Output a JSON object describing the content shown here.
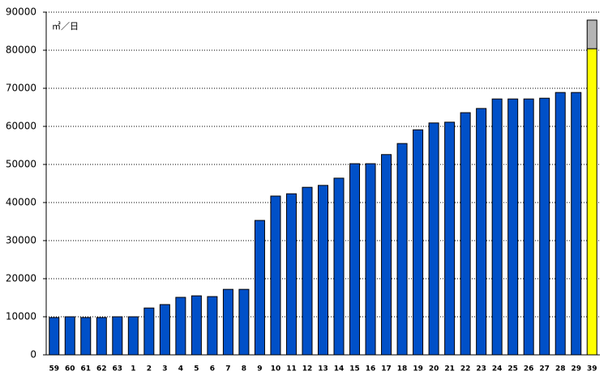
{
  "chart_data": {
    "type": "bar",
    "stacked": true,
    "y_unit_label": "㎥／日",
    "categories": [
      "59",
      "60",
      "61",
      "62",
      "63",
      "1",
      "2",
      "3",
      "4",
      "5",
      "6",
      "7",
      "8",
      "9",
      "10",
      "11",
      "12",
      "13",
      "14",
      "15",
      "16",
      "17",
      "18",
      "19",
      "20",
      "21",
      "22",
      "23",
      "24",
      "25",
      "26",
      "27",
      "28",
      "29",
      "39"
    ],
    "series": [
      {
        "color": "#0050c8",
        "values": [
          9800,
          10000,
          9800,
          9800,
          10000,
          10000,
          12300,
          13200,
          15100,
          15500,
          15300,
          17200,
          17200,
          35300,
          41700,
          42300,
          44000,
          44500,
          46400,
          50200,
          50200,
          52600,
          55500,
          59100,
          60900,
          61100,
          63600,
          64700,
          67200,
          67200,
          67200,
          67400,
          68900,
          68900,
          null
        ]
      },
      {
        "color": "#ffff00",
        "values": [
          null,
          null,
          null,
          null,
          null,
          null,
          null,
          null,
          null,
          null,
          null,
          null,
          null,
          null,
          null,
          null,
          null,
          null,
          null,
          null,
          null,
          null,
          null,
          null,
          null,
          null,
          null,
          null,
          null,
          null,
          null,
          null,
          null,
          null,
          80400
        ]
      },
      {
        "color": "#b4b4b4",
        "values": [
          null,
          null,
          null,
          null,
          null,
          null,
          null,
          null,
          null,
          null,
          null,
          null,
          null,
          null,
          null,
          null,
          null,
          null,
          null,
          null,
          null,
          null,
          null,
          null,
          null,
          null,
          null,
          null,
          null,
          null,
          null,
          null,
          null,
          null,
          7500
        ]
      }
    ],
    "ylim": [
      0,
      90000
    ],
    "yticks": [
      0,
      10000,
      20000,
      30000,
      40000,
      50000,
      60000,
      70000,
      80000,
      90000
    ],
    "grid": true
  }
}
